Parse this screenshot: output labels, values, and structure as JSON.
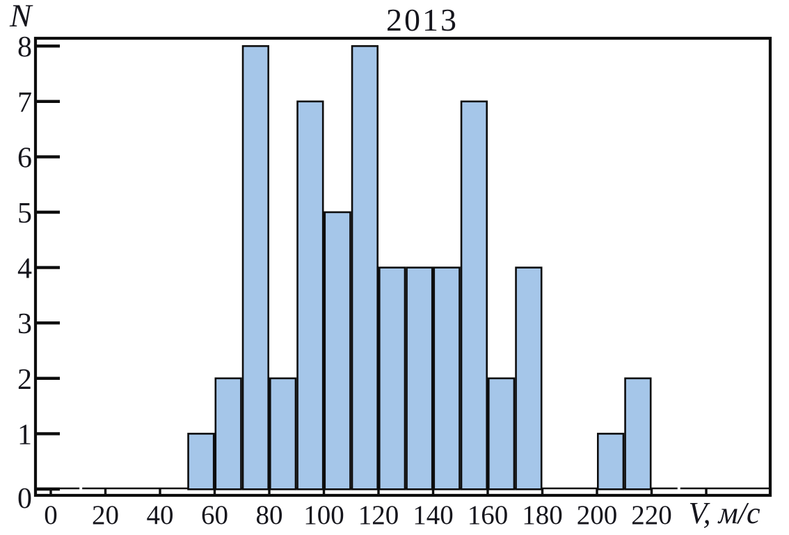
{
  "title": "2013",
  "colors": {
    "bar_fill": "#a5c6e9",
    "bar_stroke": "#0d0d0d",
    "axis": "#0d0d0d",
    "text": "#15151c"
  },
  "chart_data": {
    "type": "bar",
    "title": "2013",
    "xlabel": "V, м/с",
    "ylabel": "N",
    "bin_width": 10,
    "bin_starts": [
      50,
      60,
      70,
      80,
      90,
      100,
      110,
      120,
      130,
      140,
      150,
      160,
      170,
      180,
      190,
      200,
      210
    ],
    "counts": [
      1,
      2,
      8,
      2,
      7,
      5,
      8,
      4,
      4,
      4,
      7,
      2,
      4,
      0,
      0,
      1,
      2
    ],
    "xlim": [
      0,
      260
    ],
    "ylim": [
      0,
      8.2
    ],
    "x_tick_values": [
      0,
      20,
      40,
      60,
      80,
      100,
      120,
      140,
      160,
      180,
      200,
      220,
      240
    ],
    "x_tick_labels": [
      "0",
      "20",
      "40",
      "60",
      "80",
      "100",
      "120",
      "140",
      "160",
      "180",
      "200",
      "220",
      ""
    ],
    "y_tick_values": [
      0,
      1,
      2,
      3,
      4,
      5,
      6,
      7,
      8
    ],
    "y_tick_labels": [
      "0",
      "1",
      "2",
      "3",
      "4",
      "5",
      "6",
      "7",
      "8"
    ],
    "grid": false,
    "legend": false
  }
}
